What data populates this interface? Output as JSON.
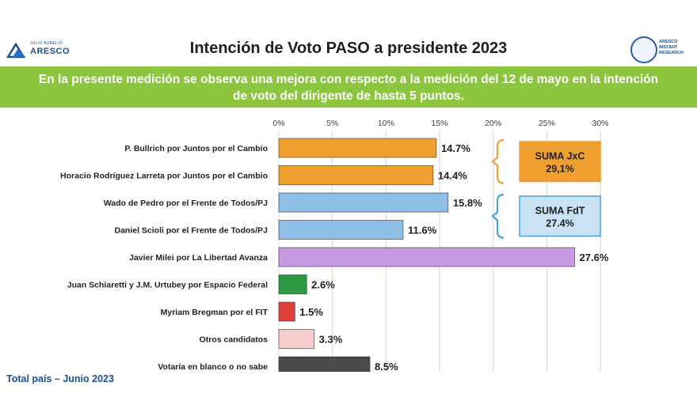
{
  "header": {
    "title": "Intención de Voto PASO a presidente 2023",
    "logo_left_small": "JULIO AURELIO",
    "logo_left_brand": "ARESCO",
    "logo_right_text": [
      "ARESCO",
      "INSTANT",
      "RESEARCH"
    ]
  },
  "banner": {
    "text": "En la presente medición se observa una mejora con respecto a la medición del 12 de mayo en la intención de voto del dirigente de hasta 5 puntos.",
    "color": "#8cc63f"
  },
  "footer": {
    "text": "Total país – Junio 2023"
  },
  "chart_data": {
    "type": "bar",
    "orientation": "horizontal",
    "title": "Intención de Voto PASO a presidente 2023",
    "xlim": [
      0,
      30
    ],
    "ticks": [
      "0%",
      "5%",
      "10%",
      "15%",
      "20%",
      "25%",
      "30%"
    ],
    "tick_values": [
      0,
      5,
      10,
      15,
      20,
      25,
      30
    ],
    "grid": true,
    "categories": [
      "P. Bullrich por Juntos por el Cambio",
      "Horacio Rodríguez Larreta por Juntos por el Cambio",
      "Wado de Pedro por el Frente de Todos/PJ",
      "Daniel Scioli por el Frente de Todos/PJ",
      "Javier Milei por La Libertad Avanza",
      "Juan Schiaretti y J.M. Urtubey por Espacio Federal",
      "Myriam Bregman por el FIT",
      "Otros candidatos",
      "Votaría en blanco o no sabe"
    ],
    "values": [
      14.7,
      14.4,
      15.8,
      11.6,
      27.6,
      2.6,
      1.5,
      3.3,
      8.5
    ],
    "value_labels": [
      "14.7%",
      "14.4%",
      "15.8%",
      "11.6%",
      "27.6%",
      "2.6%",
      "1.5%",
      "3.3%",
      "8.5%"
    ],
    "colors": [
      "#f0a030",
      "#f0a030",
      "#8fbfe6",
      "#8fbfe6",
      "#c69ae3",
      "#2e9a46",
      "#e0403a",
      "#f7cdcd",
      "#4a4a4a"
    ],
    "annotations": [
      {
        "label": "SUMA JxC",
        "value": "29,1%",
        "rows": [
          0,
          1
        ],
        "bg": "#f0a030",
        "border": "#f0a030"
      },
      {
        "label": "SUMA FdT",
        "value": "27.4%",
        "rows": [
          2,
          3
        ],
        "bg": "#c9e2f5",
        "border": "#4aa0d8"
      }
    ]
  }
}
